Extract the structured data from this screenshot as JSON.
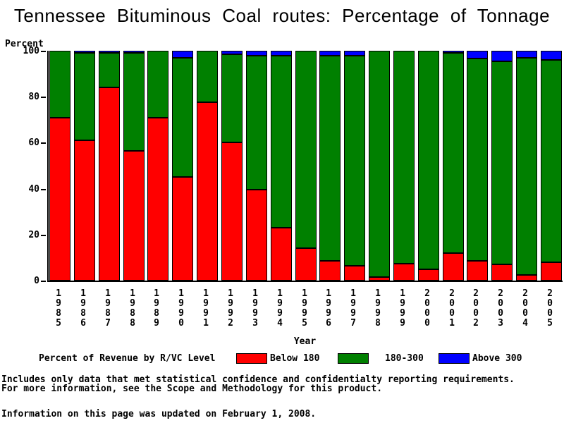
{
  "title": "Tennessee Bituminous Coal routes: Percentage of Tonnage",
  "chart_data": {
    "type": "bar",
    "stacked": true,
    "title": "Tennessee Bituminous Coal routes: Percentage of Tonnage",
    "ylabel": "Percent",
    "xlabel": "Year",
    "ylim": [
      0,
      100
    ],
    "yticks": [
      0,
      20,
      40,
      60,
      80,
      100
    ],
    "grid": false,
    "legend_title": "Percent of Revenue by R/VC Level",
    "legend_position": "bottom",
    "categories": [
      "1985",
      "1986",
      "1987",
      "1988",
      "1989",
      "1990",
      "1991",
      "1992",
      "1993",
      "1994",
      "1995",
      "1996",
      "1997",
      "1998",
      "1999",
      "2000",
      "2001",
      "2002",
      "2003",
      "2004",
      "2005"
    ],
    "series": [
      {
        "name": "Below 180",
        "color": "#ff0000",
        "values": [
          71,
          61,
          84,
          56.5,
          71,
          45,
          77.5,
          60,
          39.5,
          23,
          14,
          8.5,
          6.5,
          1.5,
          7.5,
          5,
          12,
          8.5,
          7,
          2.5,
          8
        ]
      },
      {
        "name": "180-300",
        "color": "#008000",
        "values": [
          29,
          38,
          15,
          42.5,
          29,
          52,
          22.5,
          38.5,
          58.5,
          75,
          86,
          89.5,
          91.5,
          98.5,
          92.5,
          95,
          87,
          88,
          88.5,
          94.5,
          88
        ]
      },
      {
        "name": "Above 300",
        "color": "#0000ff",
        "values": [
          0,
          1,
          1,
          1,
          0,
          3,
          0,
          1.5,
          2,
          2,
          0,
          2,
          2,
          0,
          0,
          0,
          1,
          3.5,
          4.5,
          3,
          4
        ]
      }
    ]
  },
  "legend": {
    "entries": [
      {
        "label": "Below 180",
        "color": "#ff0000"
      },
      {
        "label": "180-300",
        "color": "#008000"
      },
      {
        "label": "Above 300",
        "color": "#0000ff"
      }
    ]
  },
  "footnotes": {
    "line1": "Includes only data that met statistical confidence and confidentialty reporting requirements.",
    "line2": "For more information, see the Scope and Methodology for this product.",
    "updated": "Information on this page was updated on February 1, 2008."
  }
}
